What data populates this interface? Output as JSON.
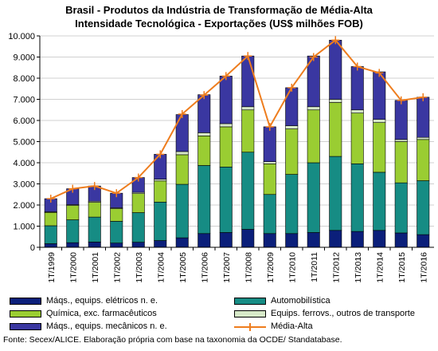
{
  "chart_data": {
    "type": "bar",
    "stacked": true,
    "title_line1": "Brasil - Produtos da Indústria de Transformação de Média-Alta",
    "title_line2": "Intensidade Tecnológica - Exportações (US$ milhões FOB)",
    "categories": [
      "1T/1999",
      "1T/2000",
      "1T/2001",
      "1T/2002",
      "1T/2003",
      "1T/2004",
      "1T/2005",
      "1T/2006",
      "1T/2007",
      "1T/2008",
      "1T/2009",
      "1T/2010",
      "1T/2011",
      "1T/2012",
      "1T/2013",
      "1T/2014",
      "1T/2015",
      "1T/2016"
    ],
    "ylim": [
      0,
      10000
    ],
    "yticks": [
      "0",
      "1.000",
      "2.000",
      "3.000",
      "4.000",
      "5.000",
      "6.000",
      "7.000",
      "8.000",
      "9.000",
      "10.000"
    ],
    "grid": true,
    "legend_position": "bottom",
    "series": [
      {
        "name": "Máqs., equips. elétricos n. e.",
        "color": "#0b1f7a",
        "values": [
          170,
          220,
          250,
          200,
          240,
          320,
          450,
          650,
          700,
          850,
          650,
          650,
          700,
          800,
          750,
          800,
          680,
          600
        ]
      },
      {
        "name": "Automobilística",
        "color": "#168c84",
        "values": [
          850,
          1080,
          1180,
          1030,
          1400,
          1820,
          2530,
          3220,
          3100,
          3650,
          1850,
          2800,
          3300,
          3500,
          3200,
          2750,
          2370,
          2550
        ]
      },
      {
        "name": "Química, exc. farmacêuticos",
        "color": "#9acd32",
        "values": [
          630,
          680,
          700,
          600,
          900,
          1000,
          1400,
          1400,
          1900,
          2000,
          1450,
          2150,
          2500,
          2550,
          2400,
          2350,
          1950,
          1950
        ]
      },
      {
        "name": "Equips. ferrovs., outros de transporte",
        "color": "#d6e8c8",
        "values": [
          30,
          40,
          50,
          40,
          60,
          80,
          150,
          150,
          150,
          150,
          100,
          150,
          150,
          150,
          150,
          150,
          100,
          100
        ]
      },
      {
        "name": "Máqs., equips. mecânicos  n. e.",
        "color": "#3a37a1",
        "values": [
          620,
          750,
          720,
          690,
          700,
          1180,
          1750,
          1800,
          2250,
          2400,
          1650,
          1800,
          2400,
          2800,
          2050,
          2250,
          1850,
          1900
        ]
      }
    ],
    "line": {
      "name": "Média-Alta",
      "color": "#ee7d1e",
      "values": [
        2300,
        2770,
        2900,
        2560,
        3300,
        4400,
        6300,
        7200,
        8100,
        9050,
        5700,
        7550,
        9000,
        9800,
        8550,
        8250,
        6950,
        7100
      ]
    }
  },
  "source": "Fonte: Secex/ALICE. Elaboração própria com base na taxonomia da OCDE/ Standatabase."
}
